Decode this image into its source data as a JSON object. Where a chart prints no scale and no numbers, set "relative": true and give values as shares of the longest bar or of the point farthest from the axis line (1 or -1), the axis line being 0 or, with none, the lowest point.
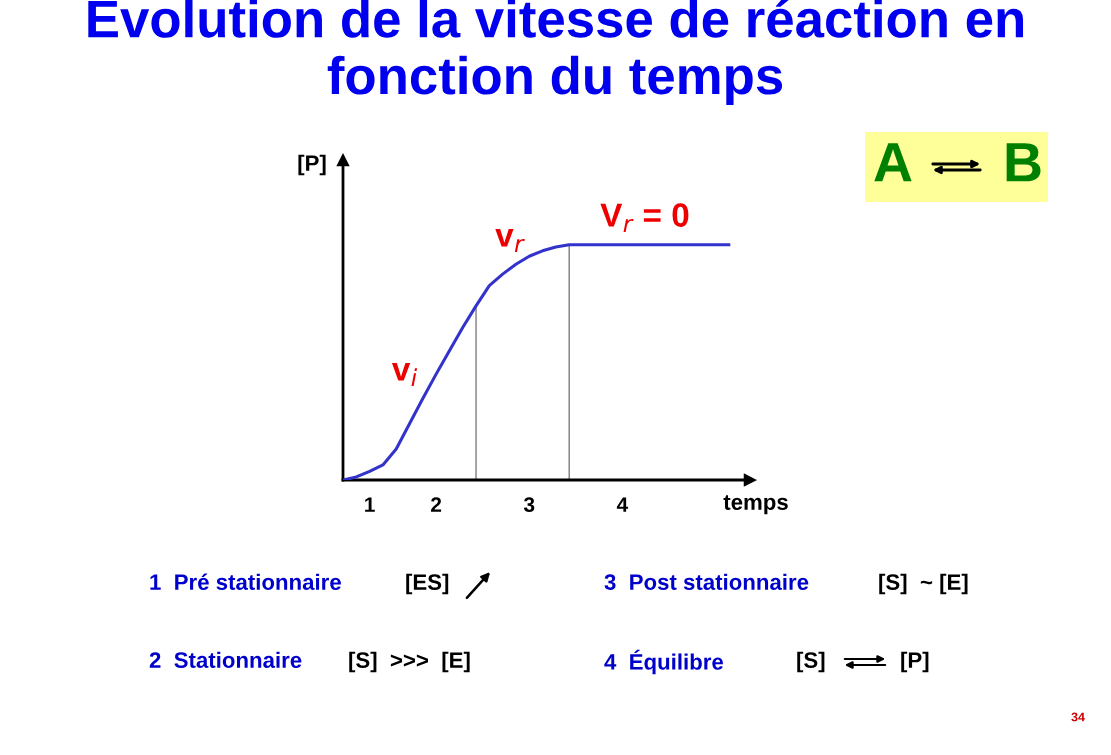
{
  "chart_data": {
    "type": "line",
    "title": "Evolution de la vitesse de réaction en fonction du temps",
    "xlabel": "temps",
    "ylabel": "[P]",
    "relative": true,
    "categories": [
      null,
      null,
      "1",
      null,
      null,
      null,
      null,
      "2",
      null,
      null,
      null,
      null,
      null,
      null,
      "3",
      null,
      null,
      null,
      null,
      null,
      null,
      "4",
      null,
      null,
      null,
      null,
      null,
      null,
      null,
      null
    ],
    "series": [
      {
        "color": "#3333cc",
        "values": [
          0,
          0.013,
          0.037,
          0.064,
          0.132,
          0.239,
          0.346,
          0.45,
          0.549,
          0.648,
          0.74,
          0.826,
          0.875,
          0.917,
          0.951,
          0.974,
          0.99,
          1,
          1,
          1,
          1,
          1,
          1,
          1,
          1,
          1,
          1,
          1,
          1,
          1
        ]
      },
      {
        "type": "bar",
        "color": "#555555",
        "values": [
          null,
          null,
          null,
          null,
          null,
          null,
          null,
          null,
          null,
          null,
          0.74,
          null,
          null,
          null,
          null,
          null,
          null,
          1,
          null,
          null,
          null,
          null,
          null,
          null,
          null,
          null,
          null,
          null,
          null,
          null
        ]
      }
    ],
    "grid": false,
    "legend": false,
    "marker": "none",
    "line_style": "solid",
    "annotations": [
      "v$_{i}$",
      "v$_{r}$",
      "V$_{r}$ = 0",
      "1  Pré stationnaire",
      "[ES]",
      "3  Post stationnaire",
      "[S]  ~ [E]",
      "2  Stationnaire",
      "[S]  >>>  [E]",
      "4  Équilibre",
      "[S]",
      "[P]",
      "34",
      "A",
      "B"
    ]
  }
}
